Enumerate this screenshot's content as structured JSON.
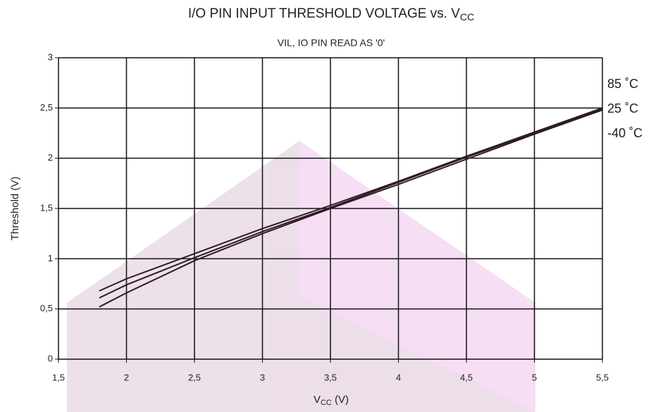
{
  "chart_data": {
    "type": "line",
    "title": {
      "text": "I/O PIN INPUT THRESHOLD VOLTAGE vs. V",
      "subscript": "CC"
    },
    "subtitle": "VIL, IO PIN READ AS '0'",
    "x_label": {
      "text": "V",
      "subscript": "CC",
      "suffix": " (V)"
    },
    "y_label": "Threshold (V)",
    "x": [
      1.8,
      2,
      2.5,
      3,
      3.5,
      4,
      4.5,
      5,
      5.5
    ],
    "series": [
      {
        "name": "85 ˚C",
        "color": "#2e1a24",
        "values": [
          0.68,
          0.8,
          1.05,
          1.3,
          1.53,
          1.77,
          2.02,
          2.26,
          2.5
        ]
      },
      {
        "name": "25 ˚C",
        "color": "#2e1a24",
        "values": [
          0.61,
          0.74,
          1.01,
          1.27,
          1.51,
          1.76,
          2.01,
          2.25,
          2.49
        ]
      },
      {
        "name": "-40 ˚C",
        "color": "#2e1a24",
        "values": [
          0.52,
          0.66,
          0.98,
          1.25,
          1.5,
          1.74,
          1.99,
          2.24,
          2.48
        ]
      }
    ],
    "xlim": [
      1.5,
      5.5
    ],
    "xticks": [
      {
        "value": 1.5,
        "label": "1,5"
      },
      2,
      {
        "value": 2.5,
        "label": "2,5"
      },
      3,
      {
        "value": 3.5,
        "label": "3,5"
      },
      4,
      {
        "value": 4.5,
        "label": "4,5"
      },
      5,
      {
        "value": 5.5,
        "label": "5,5"
      }
    ],
    "ylim": [
      0,
      3
    ],
    "yticks": [
      0,
      {
        "value": 0.5,
        "label": "0,5"
      },
      1,
      {
        "value": 1.5,
        "label": "1,5"
      },
      2,
      {
        "value": 2.5,
        "label": "2,5"
      },
      3
    ],
    "grid": true
  }
}
